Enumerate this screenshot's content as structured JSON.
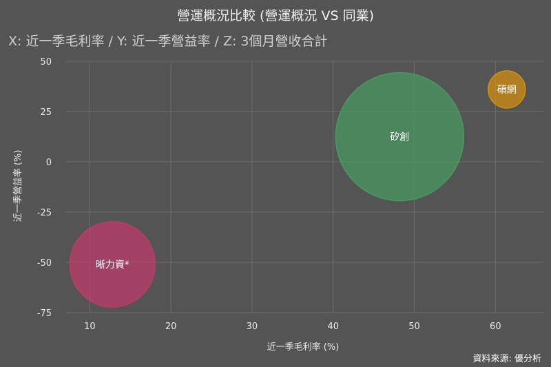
{
  "title": "營運概況比較 (營運概況 VS 同業)",
  "subtitle": "X: 近一季毛利率 / Y: 近一季營益率 / Z: 3個月營收合計",
  "source": "資料來源: 優分析",
  "chart_data": {
    "type": "scatter",
    "xlabel": "近一季毛利率 (%)",
    "ylabel": "近一季營益率 (%)",
    "xlim": [
      7,
      66
    ],
    "ylim": [
      -75,
      50
    ],
    "xticks": [
      10,
      20,
      30,
      40,
      50,
      60
    ],
    "yticks": [
      50,
      25,
      0,
      -25,
      -50,
      -75
    ],
    "grid": true,
    "points": [
      {
        "name": "晰力資*",
        "x": 12.8,
        "y": -51,
        "color": "#c03a6a"
      },
      {
        "name": "矽創",
        "x": 48.2,
        "y": 12.5,
        "color": "#4a9a60"
      },
      {
        "name": "碩網",
        "x": 61.4,
        "y": 36,
        "color": "#d4900f"
      }
    ]
  }
}
